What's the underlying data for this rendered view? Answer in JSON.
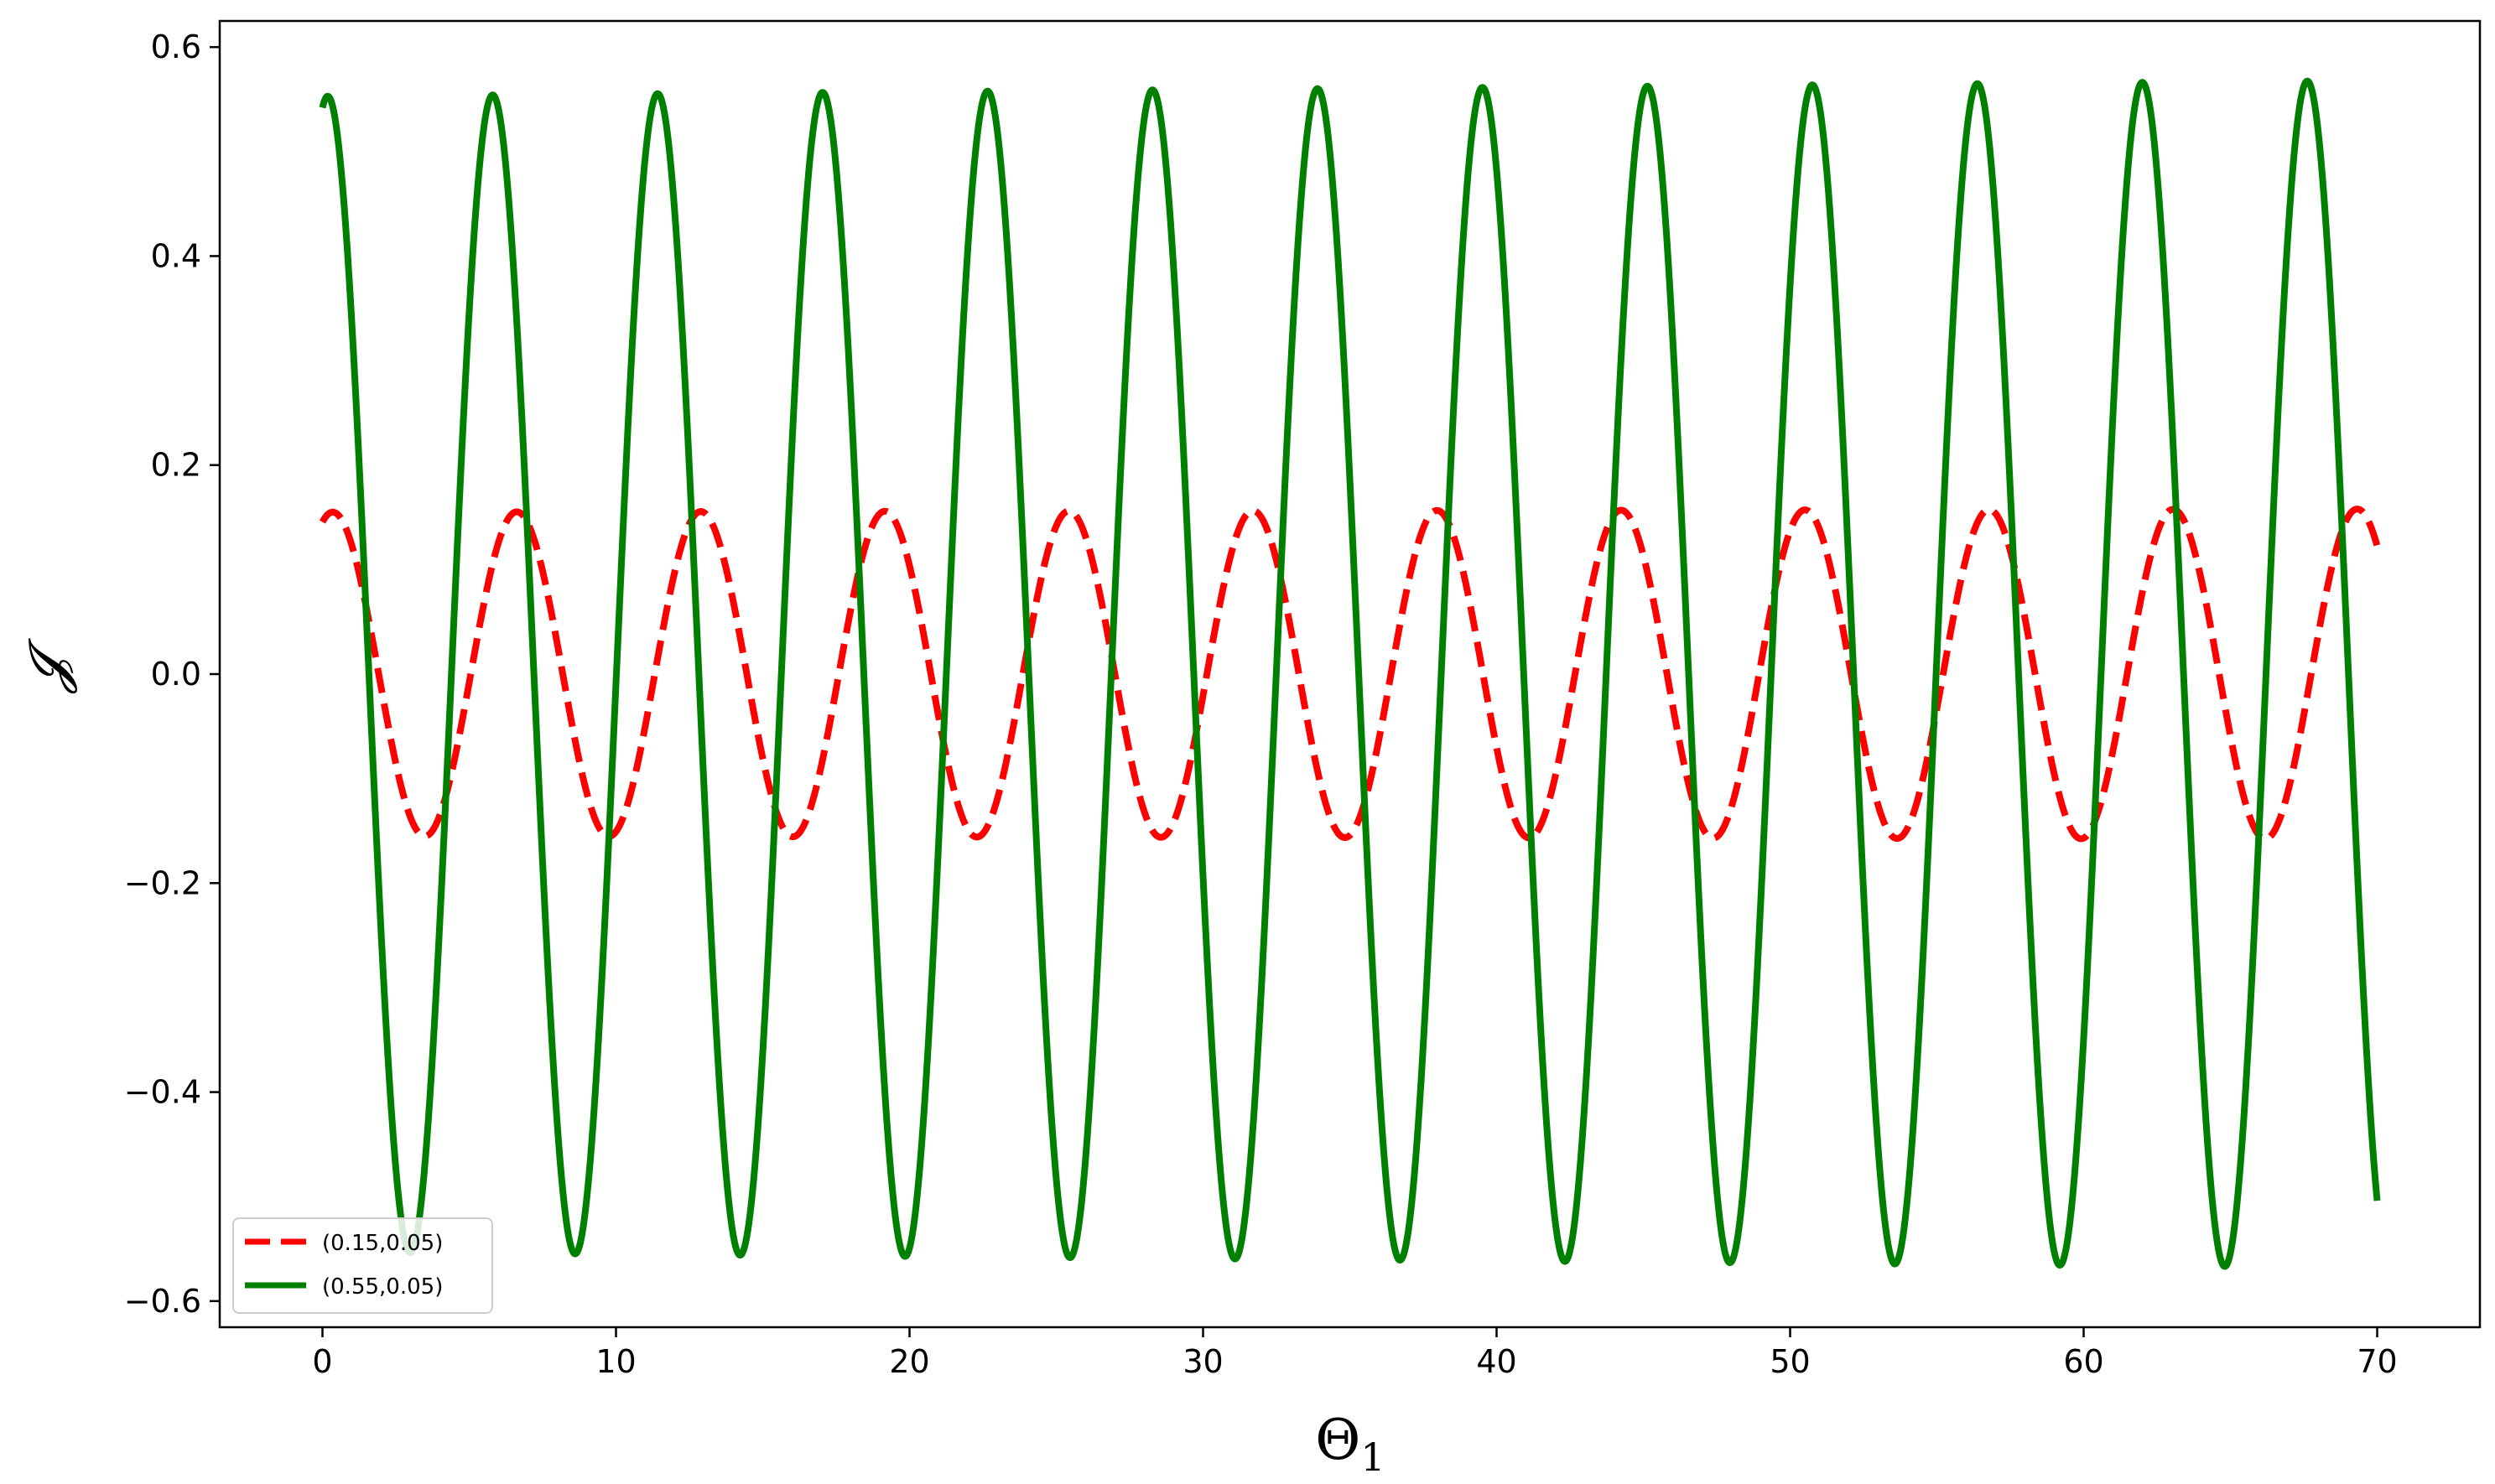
{
  "chart_data": {
    "type": "line",
    "xlabel": "Θ",
    "xlabel_sub": "1",
    "ylabel": "𝓙",
    "xlim": [
      -3.5,
      73.5
    ],
    "ylim": [
      -0.625,
      0.625
    ],
    "xticks": [
      0,
      10,
      20,
      30,
      40,
      50,
      60,
      70
    ],
    "xtick_labels": [
      "0",
      "10",
      "20",
      "30",
      "40",
      "50",
      "60",
      "70"
    ],
    "yticks": [
      -0.6,
      -0.4,
      -0.2,
      0.0,
      0.2,
      0.4,
      0.6
    ],
    "ytick_labels": [
      "−0.6",
      "−0.4",
      "−0.2",
      "0.0",
      "0.2",
      "0.4",
      "0.6"
    ],
    "grid": false,
    "legend_position": "lower-left",
    "series": [
      {
        "name": "(0.15,0.05)",
        "color": "#ff0000",
        "style": "dashed",
        "amplitude_start": 0.155,
        "amplitude_end": 0.158,
        "period": 6.27,
        "phase": 0.35,
        "x_range": [
          0,
          70
        ]
      },
      {
        "name": "(0.55,0.05)",
        "color": "#008000",
        "style": "solid",
        "amplitude_start": 0.553,
        "amplitude_end": 0.568,
        "period": 5.62,
        "phase": 0.2,
        "x_range": [
          0,
          70
        ]
      }
    ]
  }
}
